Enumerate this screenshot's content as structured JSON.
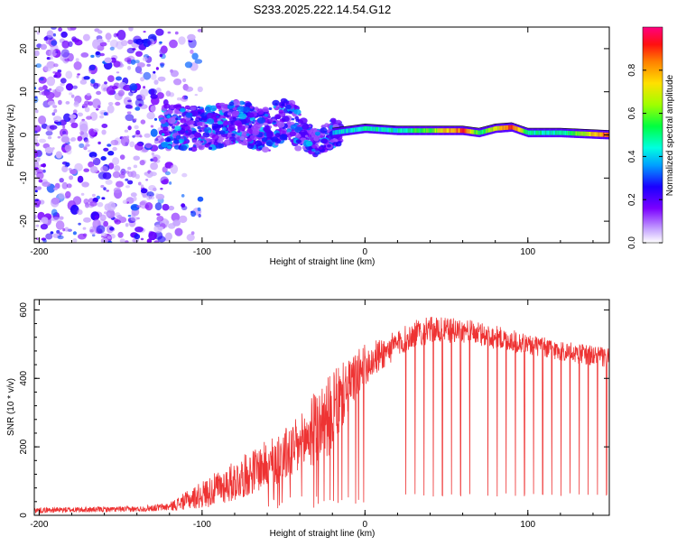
{
  "title": "S233.2025.222.14.54.G12",
  "chart_data": [
    {
      "type": "heatmap",
      "panel": "top",
      "xlabel": "Height of straight line (km)",
      "ylabel": "Frequency (Hz)",
      "xlim": [
        -203,
        150
      ],
      "ylim": [
        -25,
        25
      ],
      "xticks": [
        -200,
        -100,
        0,
        100
      ],
      "yticks": [
        -20,
        -10,
        0,
        10,
        20
      ],
      "colorbar": {
        "label": "Normalized spectral amplitude",
        "range": [
          0.0,
          1.0
        ],
        "ticks": [
          "0.0",
          "0.2",
          "0.4",
          "0.6",
          "0.8"
        ],
        "tick_values": [
          0.0,
          0.2,
          0.4,
          0.6,
          0.8
        ]
      },
      "ridge": {
        "description_points_x": [
          -120,
          -100,
          -80,
          -60,
          -50,
          -40,
          -30,
          -20,
          0,
          20,
          40,
          60,
          70,
          80,
          90,
          100,
          120,
          150
        ],
        "description_points_f": [
          2,
          1.5,
          3,
          1,
          4,
          1,
          -2,
          0.5,
          1.5,
          1,
          1,
          1,
          0.5,
          1.5,
          1.8,
          0.5,
          0.5,
          0
        ],
        "ridge_amplitude": [
          0.25,
          0.3,
          0.35,
          0.35,
          0.4,
          0.35,
          0.35,
          0.4,
          0.45,
          0.45,
          0.6,
          0.9,
          0.5,
          0.7,
          0.9,
          0.5,
          0.45,
          0.9
        ]
      }
    },
    {
      "type": "line",
      "panel": "bottom",
      "xlabel": "Height of straight line (km)",
      "ylabel": "SNR (10 * v/v)",
      "xlim": [
        -203,
        150
      ],
      "ylim": [
        0,
        630
      ],
      "xticks": [
        -200,
        -100,
        0,
        100
      ],
      "yticks": [
        0,
        200,
        400,
        600
      ],
      "color": "#ee3333",
      "envelope_x": [
        -203,
        -140,
        -120,
        -100,
        -80,
        -60,
        -40,
        -30,
        -20,
        -10,
        0,
        10,
        20,
        30,
        40,
        60,
        80,
        100,
        120,
        150
      ],
      "envelope_mean": [
        15,
        18,
        25,
        60,
        100,
        150,
        200,
        260,
        300,
        380,
        440,
        470,
        500,
        530,
        540,
        540,
        520,
        500,
        480,
        460
      ],
      "envelope_noise": [
        8,
        8,
        12,
        40,
        60,
        70,
        90,
        110,
        120,
        80,
        60,
        50,
        40,
        40,
        40,
        35,
        35,
        30,
        30,
        30
      ],
      "dropout_level": 55
    }
  ]
}
